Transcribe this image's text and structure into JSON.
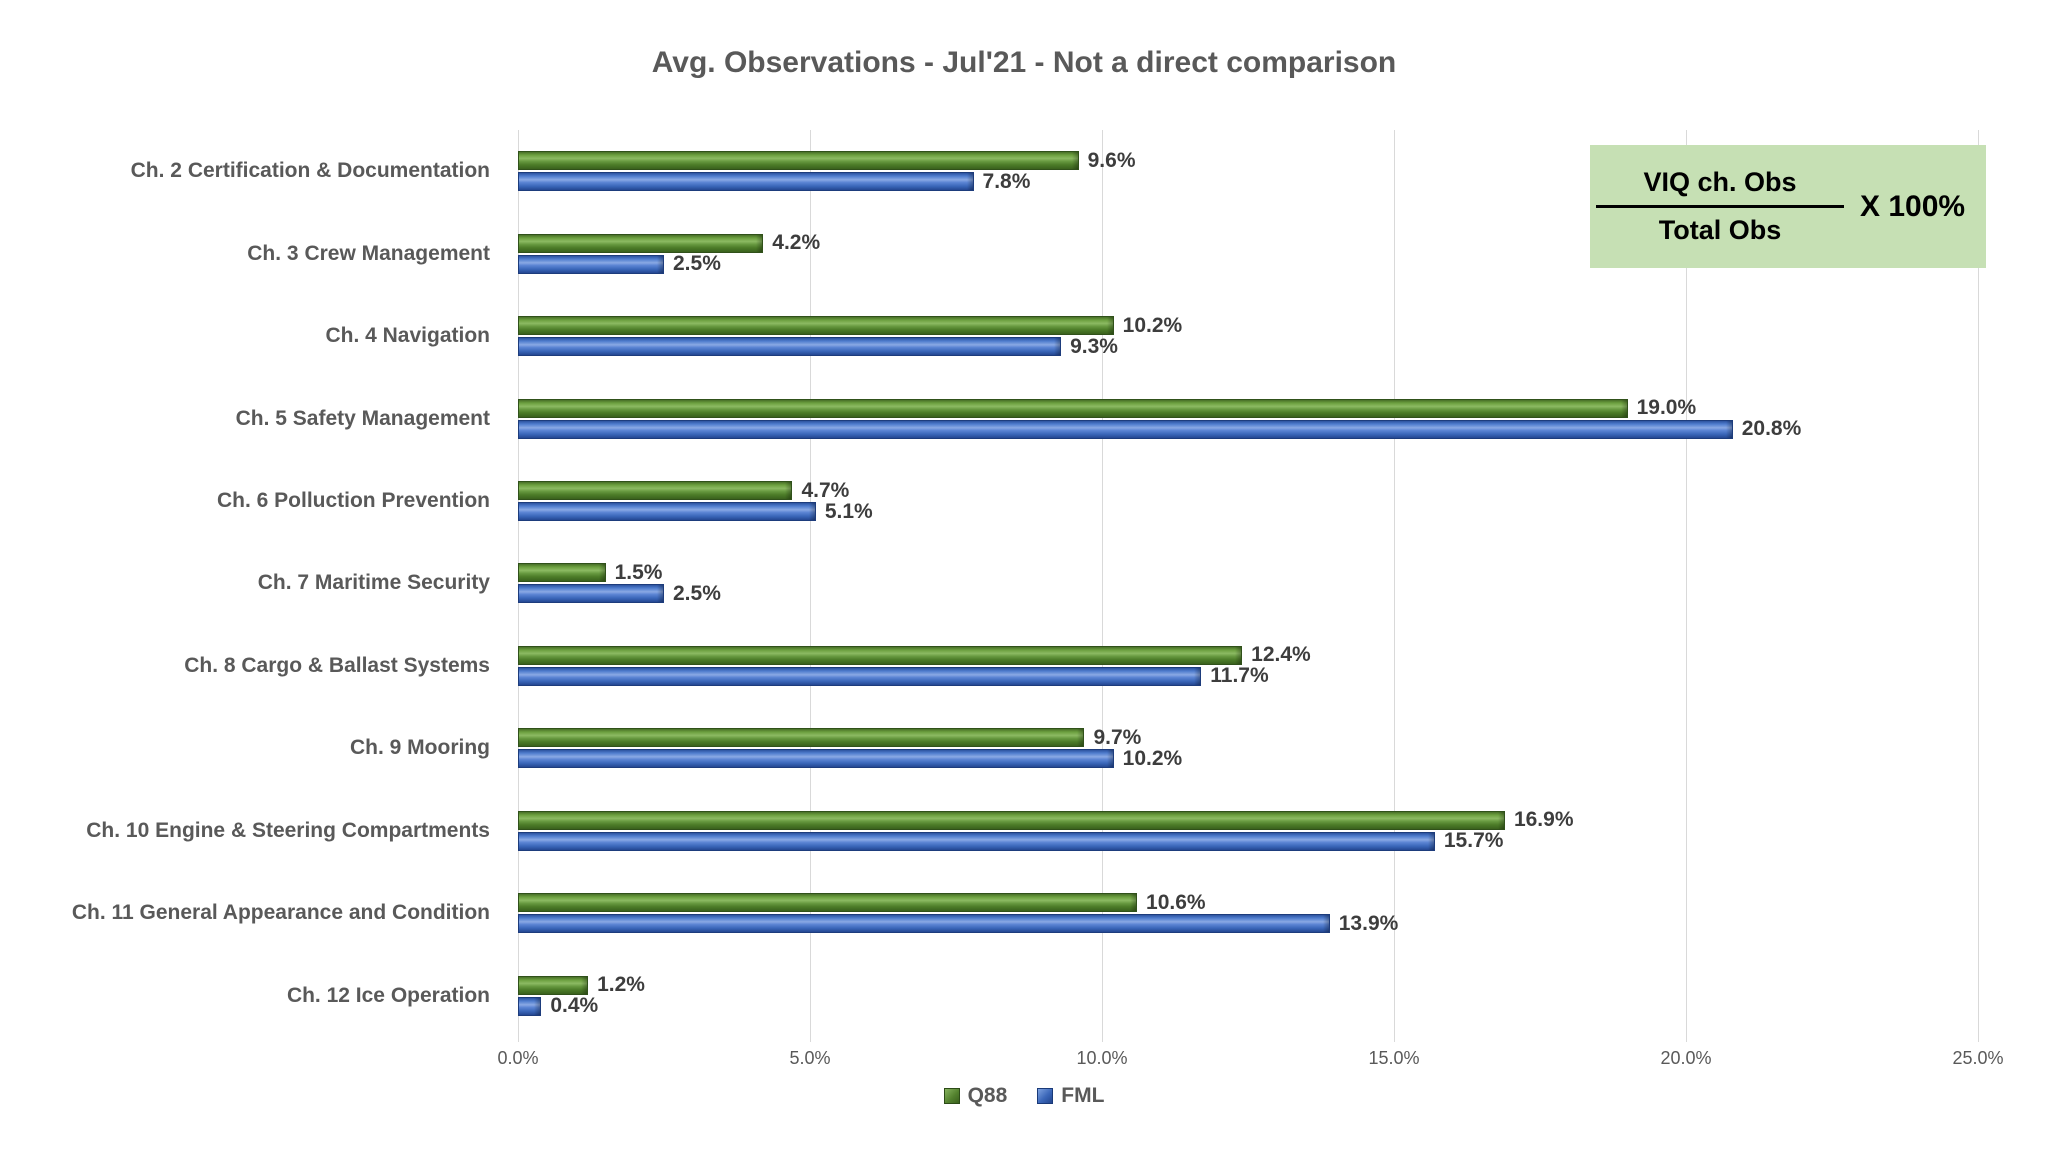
{
  "title": "Avg. Observations - Jul'21 - Not a direct comparison",
  "formula_box": {
    "numerator": "VIQ ch. Obs",
    "denominator": "Total Obs",
    "multiplier": "X 100%",
    "background_color": "#c6e0b4"
  },
  "colors": {
    "q88_green": "#538135",
    "fml_blue": "#4472c4",
    "gridline": "#d9d9d9",
    "text_gray": "#595959"
  },
  "chart_data": {
    "type": "bar",
    "orientation": "horizontal",
    "title": "Avg. Observations - Jul'21 - Not a direct comparison",
    "categories": [
      "Ch. 2 Certification & Documentation",
      "Ch. 3 Crew Management",
      "Ch. 4 Navigation",
      "Ch. 5 Safety Management",
      "Ch. 6 Polluction Prevention",
      "Ch. 7 Maritime Security",
      "Ch. 8 Cargo & Ballast Systems",
      "Ch. 9 Mooring",
      "Ch. 10 Engine & Steering Compartments",
      "Ch. 11 General Appearance and Condition",
      "Ch. 12 Ice Operation"
    ],
    "series": [
      {
        "name": "Q88",
        "color_hex": "#538135",
        "values": [
          9.6,
          4.2,
          10.2,
          19.0,
          4.7,
          1.5,
          12.4,
          9.7,
          16.9,
          10.6,
          1.2
        ],
        "labels": [
          "9.6%",
          "4.2%",
          "10.2%",
          "19.0%",
          "4.7%",
          "1.5%",
          "12.4%",
          "9.7%",
          "16.9%",
          "10.6%",
          "1.2%"
        ]
      },
      {
        "name": "FML",
        "color_hex": "#4472c4",
        "values": [
          7.8,
          2.5,
          9.3,
          20.8,
          5.1,
          2.5,
          11.7,
          10.2,
          15.7,
          13.9,
          0.4
        ],
        "labels": [
          "7.8%",
          "2.5%",
          "9.3%",
          "20.8%",
          "5.1%",
          "2.5%",
          "11.7%",
          "10.2%",
          "15.7%",
          "13.9%",
          "0.4%"
        ]
      }
    ],
    "x_axis": {
      "min": 0,
      "max": 25,
      "ticks": [
        "0.0%",
        "5.0%",
        "10.0%",
        "15.0%",
        "20.0%",
        "25.0%"
      ]
    },
    "grid": "vertical",
    "legend_position": "bottom",
    "value_labels_shown": true
  }
}
